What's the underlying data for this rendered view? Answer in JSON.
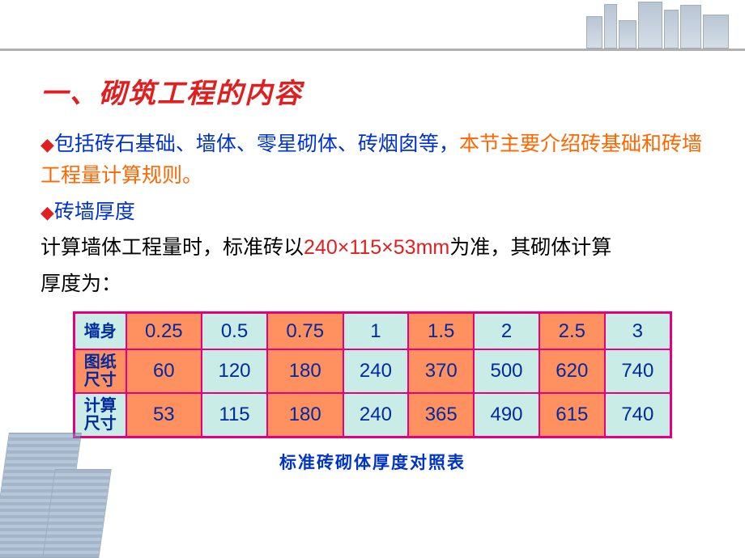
{
  "colors": {
    "title": "#e02020",
    "blue": "#0033cc",
    "orange": "#ff6600",
    "black": "#000000",
    "table_border": "#e6007e",
    "cell_teal": "#c9ece7",
    "cell_orange": "#ff9060",
    "cell_text": "#002a9f"
  },
  "title": "一、砌筑工程的内容",
  "bullet1": {
    "part1": "包括砖石基础、墙体、零星砌体、砖烟囱等，",
    "part2": "本节主要介绍砖基础和砖墙工程量计算规则。"
  },
  "bullet2_label": "砖墙厚度",
  "line3": {
    "pre": "计算墙体工程量时，标准砖以",
    "spec": "240×115×53mm",
    "post": "为准，其砌体计算"
  },
  "line4": "厚度为：",
  "table": {
    "row_headers": [
      "墙身",
      "图纸尺寸",
      "计算尺寸"
    ],
    "rows": [
      [
        "0.25",
        "0.5",
        "0.75",
        "1",
        "1.5",
        "2",
        "2.5",
        "3"
      ],
      [
        "60",
        "120",
        "180",
        "240",
        "370",
        "500",
        "620",
        "740"
      ],
      [
        "53",
        "115",
        "180",
        "240",
        "365",
        "490",
        "615",
        "740"
      ]
    ],
    "header_bg_pattern": [
      "teal",
      "orange"
    ],
    "data_bg_pattern": [
      "orange",
      "teal"
    ],
    "header_fontsize": 20,
    "cell_fontsize": 24
  },
  "caption": "标准砖砌体厚度对照表"
}
